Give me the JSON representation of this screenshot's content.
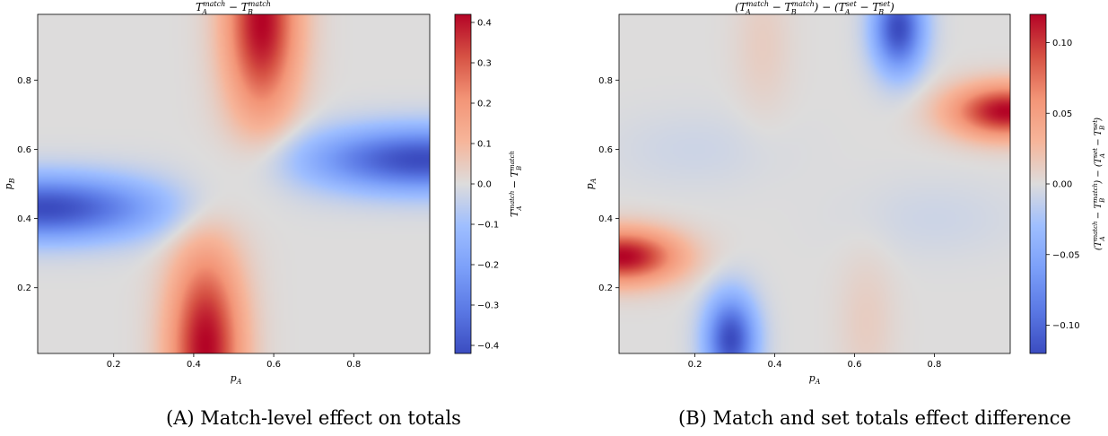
{
  "chart_data": [
    {
      "type": "heatmap",
      "panel_label": "(A)",
      "caption": "Match-level effect on totals",
      "title": "T_A^match − T_B^match",
      "xlabel": "p_A",
      "ylabel": "p_B",
      "colorbar_label": "T_A^match − T_B^match",
      "xlim": [
        0.01,
        0.99
      ],
      "ylim": [
        0.01,
        0.99
      ],
      "xticks": [
        0.2,
        0.4,
        0.6,
        0.8
      ],
      "yticks": [
        0.2,
        0.4,
        0.6,
        0.8
      ],
      "colormap": "coolwarm",
      "clim": [
        -0.42,
        0.42
      ],
      "colorbar_ticks": [
        -0.4,
        -0.3,
        -0.2,
        -0.1,
        0.0,
        0.1,
        0.2,
        0.3,
        0.4
      ],
      "features": [
        {
          "x": 0.43,
          "y": 0.03,
          "value": 0.42
        },
        {
          "x": 0.57,
          "y": 0.97,
          "value": 0.42
        },
        {
          "x": 0.03,
          "y": 0.43,
          "value": -0.42
        },
        {
          "x": 0.97,
          "y": 0.57,
          "value": -0.42
        },
        {
          "x": 0.5,
          "y": 0.5,
          "value": 0.0
        }
      ]
    },
    {
      "type": "heatmap",
      "panel_label": "(B)",
      "caption": "Match and set totals effect difference",
      "title": "(T_A^match − T_B^match) − (T_A^set − T_B^set)",
      "xlabel": "p_A",
      "ylabel": "p_A",
      "colorbar_label": "(T_A^match − T_B^match) − (T_A^set − T_B^set)",
      "xlim": [
        0.01,
        0.99
      ],
      "ylim": [
        0.01,
        0.99
      ],
      "xticks": [
        0.2,
        0.4,
        0.6,
        0.8
      ],
      "yticks": [
        0.2,
        0.4,
        0.6,
        0.8
      ],
      "colormap": "coolwarm",
      "clim": [
        -0.12,
        0.12
      ],
      "colorbar_ticks": [
        -0.1,
        -0.05,
        0.0,
        0.05,
        0.1
      ],
      "features": [
        {
          "x": 0.02,
          "y": 0.29,
          "value": 0.12
        },
        {
          "x": 0.98,
          "y": 0.71,
          "value": 0.12
        },
        {
          "x": 0.29,
          "y": 0.05,
          "value": -0.12
        },
        {
          "x": 0.71,
          "y": 0.95,
          "value": -0.12
        },
        {
          "x": 0.37,
          "y": 0.9,
          "value": 0.01
        },
        {
          "x": 0.63,
          "y": 0.1,
          "value": 0.01
        }
      ]
    }
  ],
  "captions": {
    "a_label": "(A)",
    "a_text": "Match-level effect on totals",
    "b_label": "(B)",
    "b_text": "Match and set totals effect difference"
  }
}
